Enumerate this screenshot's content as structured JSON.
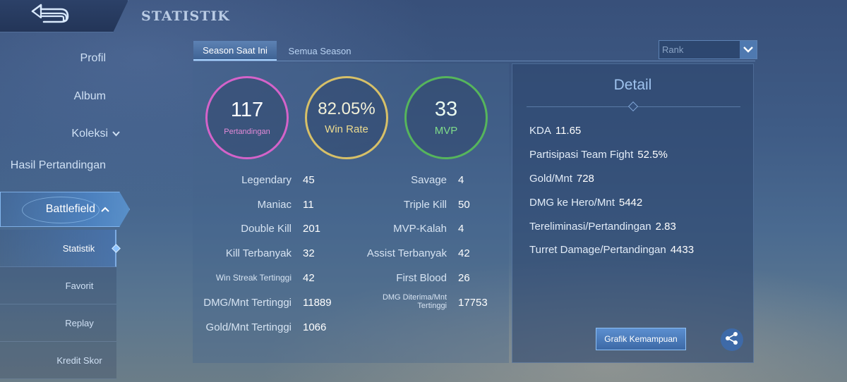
{
  "header": {
    "title": "STATISTIK"
  },
  "sidebar": {
    "items": [
      {
        "label": "Profil"
      },
      {
        "label": "Album"
      },
      {
        "label": "Koleksi"
      },
      {
        "label": "Hasil Pertandingan"
      },
      {
        "label": "Battlefield"
      }
    ],
    "sub_items": [
      {
        "label": "Statistik"
      },
      {
        "label": "Favorit"
      },
      {
        "label": "Replay"
      },
      {
        "label": "Kredit Skor"
      }
    ]
  },
  "tabs": [
    {
      "label": "Season Saat Ini"
    },
    {
      "label": "Semua Season"
    }
  ],
  "filter": {
    "selected": "Rank"
  },
  "summary": {
    "matches": {
      "value": "117",
      "label": "Pertandingan"
    },
    "winrate": {
      "value": "82.05%",
      "label": "Win Rate"
    },
    "mvp": {
      "value": "33",
      "label": "MVP"
    }
  },
  "stats_left": [
    {
      "label": "Legendary",
      "value": "45"
    },
    {
      "label": "Maniac",
      "value": "11"
    },
    {
      "label": "Double Kill",
      "value": "201"
    },
    {
      "label": "Kill Terbanyak",
      "value": "32"
    },
    {
      "label": "Win Streak Tertinggi",
      "value": "42"
    },
    {
      "label": "DMG/Mnt Tertinggi",
      "value": "11889"
    },
    {
      "label": "Gold/Mnt Tertinggi",
      "value": "1066"
    }
  ],
  "stats_right": [
    {
      "label": "Savage",
      "value": "4"
    },
    {
      "label": "Triple Kill",
      "value": "50"
    },
    {
      "label": "MVP-Kalah",
      "value": "4"
    },
    {
      "label": "Assist Terbanyak",
      "value": "42"
    },
    {
      "label": "First Blood",
      "value": "26"
    },
    {
      "label": "DMG Diterima/Mnt Tertinggi",
      "value": "17753"
    }
  ],
  "detail": {
    "title": "Detail",
    "rows": [
      {
        "label": "KDA",
        "value": "11.65"
      },
      {
        "label": "Partisipasi Team Fight",
        "value": "52.5%"
      },
      {
        "label": "Gold/Mnt",
        "value": "728"
      },
      {
        "label": "DMG ke Hero/Mnt",
        "value": "5442"
      },
      {
        "label": "Tereliminasi/Pertandingan",
        "value": "2.83"
      },
      {
        "label": "Turret Damage/Pertandingan",
        "value": "4433"
      }
    ],
    "grafik_label": "Grafik Kemampuan"
  },
  "icons": {
    "back": "back-arrow-icon",
    "dropdown": "chevron-down-icon",
    "share": "share-icon"
  },
  "colors": {
    "matches_ring": "#d463c9",
    "winrate_ring": "#d7c068",
    "mvp_ring": "#56b55c"
  }
}
